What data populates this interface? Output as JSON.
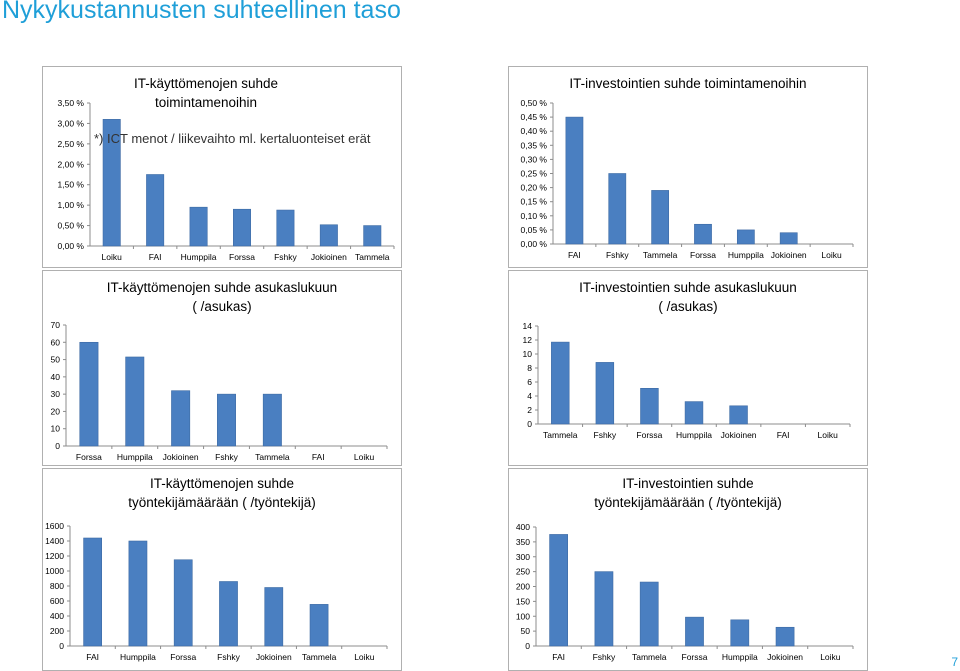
{
  "slide": {
    "title": "Nykykustannusten suhteellinen taso",
    "page_number": "7"
  },
  "colors": {
    "bar": "#4a7fc1",
    "title": "#1f9fd8"
  },
  "chart_data": [
    {
      "type": "bar",
      "title_lines": [
        "IT-käyttömenojen suhde",
        "toimintamenoihin"
      ],
      "annotation": "*) ICT menot / liikevaihto ml. kertaluonteiset erät",
      "categories": [
        "Loiku",
        "FAI",
        "Humppila",
        "Forssa",
        "Fshky",
        "Jokioinen",
        "Tammela"
      ],
      "values": [
        0.031,
        0.0175,
        0.0095,
        0.009,
        0.0088,
        0.0052,
        0.005
      ],
      "ylim": [
        0,
        0.035
      ],
      "yticks": [
        "0,00 %",
        "0,50 %",
        "1,00 %",
        "1,50 %",
        "2,00 %",
        "2,50 %",
        "3,00 %",
        "3,50 %"
      ],
      "grid": false,
      "legend": "none"
    },
    {
      "type": "bar",
      "title_lines": [
        "IT-investointien suhde toimintamenoihin"
      ],
      "categories": [
        "FAI",
        "Fshky",
        "Tammela",
        "Forssa",
        "Humppila",
        "Jokioinen",
        "Loiku"
      ],
      "values": [
        0.0045,
        0.0025,
        0.0019,
        0.0007,
        0.0005,
        0.0004,
        0
      ],
      "ylim": [
        0,
        0.005
      ],
      "yticks": [
        "0,00 %",
        "0,05 %",
        "0,10 %",
        "0,15 %",
        "0,20 %",
        "0,25 %",
        "0,30 %",
        "0,35 %",
        "0,40 %",
        "0,45 %",
        "0,50 %"
      ],
      "grid": false,
      "legend": "none"
    },
    {
      "type": "bar",
      "title_lines": [
        "IT-käyttömenojen suhde asukaslukuun",
        "( /asukas)"
      ],
      "categories": [
        "Forssa",
        "Humppila",
        "Jokioinen",
        "Fshky",
        "Tammela",
        "FAI",
        "Loiku"
      ],
      "values": [
        60,
        51.5,
        32,
        30,
        30,
        0,
        0
      ],
      "ylim": [
        0,
        70
      ],
      "yticks": [
        "0",
        "10",
        "20",
        "30",
        "40",
        "50",
        "60",
        "70"
      ],
      "grid": false,
      "legend": "none"
    },
    {
      "type": "bar",
      "title_lines": [
        "IT-investointien suhde asukaslukuun",
        "( /asukas)"
      ],
      "categories": [
        "Tammela",
        "Fshky",
        "Forssa",
        "Humppila",
        "Jokioinen",
        "FAI",
        "Loiku"
      ],
      "values": [
        11.7,
        8.8,
        5.1,
        3.2,
        2.6,
        0,
        0
      ],
      "ylim": [
        0,
        14
      ],
      "yticks": [
        "0",
        "2",
        "4",
        "6",
        "8",
        "10",
        "12",
        "14"
      ],
      "grid": false,
      "legend": "none"
    },
    {
      "type": "bar",
      "title_lines": [
        "IT-käyttömenojen suhde",
        "työntekijämäärään ( /työntekijä)"
      ],
      "categories": [
        "FAI",
        "Humppila",
        "Forssa",
        "Fshky",
        "Jokioinen",
        "Tammela",
        "Loiku"
      ],
      "values": [
        1440,
        1400,
        1150,
        860,
        780,
        555,
        0
      ],
      "ylim": [
        0,
        1600
      ],
      "yticks": [
        "0",
        "200",
        "400",
        "600",
        "800",
        "1000",
        "1200",
        "1400",
        "1600"
      ],
      "grid": false,
      "legend": "none"
    },
    {
      "type": "bar",
      "title_lines": [
        "IT-investointien suhde",
        "työntekijämäärään ( /työntekijä)"
      ],
      "categories": [
        "FAI",
        "Fshky",
        "Tammela",
        "Forssa",
        "Humppila",
        "Jokioinen",
        "Loiku"
      ],
      "values": [
        375,
        250,
        215,
        97,
        88,
        63,
        0
      ],
      "ylim": [
        0,
        400
      ],
      "yticks": [
        "0",
        "50",
        "100",
        "150",
        "200",
        "250",
        "300",
        "350",
        "400"
      ],
      "grid": false,
      "legend": "none"
    }
  ]
}
